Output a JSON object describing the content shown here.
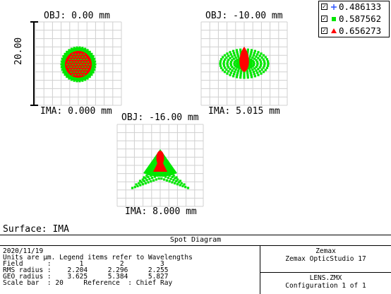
{
  "legend": {
    "items": [
      {
        "value": "0.486133",
        "color": "#2a52ff",
        "marker": "plus"
      },
      {
        "value": "0.587562",
        "color": "#00e600",
        "marker": "square"
      },
      {
        "value": "0.656273",
        "color": "#ff0000",
        "marker": "triangle"
      }
    ],
    "check_mark": "✓"
  },
  "spots": [
    {
      "obj_label": "OBJ: 0.00 mm",
      "ima_label": "IMA: 0.000 mm",
      "shape": "circle"
    },
    {
      "obj_label": "OBJ: -10.00 mm",
      "ima_label": "IMA: 5.015 mm",
      "shape": "egg"
    },
    {
      "obj_label": "OBJ: -16.00 mm",
      "ima_label": "IMA: 8.000 mm",
      "shape": "fan"
    }
  ],
  "scale_bar": {
    "label": "20.00"
  },
  "surface_label": "Surface: IMA",
  "info": {
    "title": "Spot Diagram",
    "lines": [
      "2020/11/19",
      "Units are µm. Legend items refer to Wavelengths",
      "Field      :       1         2         3",
      "RMS radius :    2.204     2.296     2.255",
      "GEO radius :    3.625     5.384     5.827",
      "Scale bar  : 20     Reference  : Chief Ray"
    ],
    "brand": "Zemax",
    "product": "Zemax OpticStudio 17",
    "file": "LENS.ZMX",
    "configuration": "Configuration 1 of 1"
  }
}
